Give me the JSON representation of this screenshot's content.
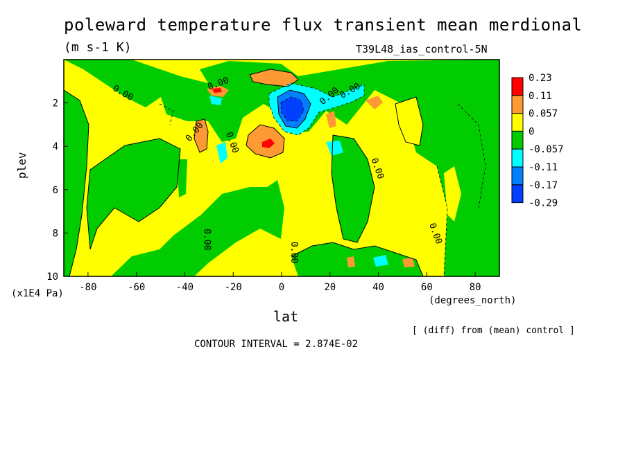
{
  "header": {
    "title": "poleward temperature flux transient mean merdional",
    "units": "(m s-1 K)",
    "experiment": "T39L48_ias_control-5N",
    "footer_diff": "[ (diff) from (mean) control ]",
    "contour_interval": "CONTOUR INTERVAL = 2.874E-02"
  },
  "chart_data": {
    "type": "heatmap",
    "title": "poleward temperature flux transient mean merdional",
    "xlabel": "lat",
    "x_units": "(degrees_north)",
    "ylabel": "plev",
    "y_units": "(x1E4 Pa)",
    "xlim": [
      -90,
      90
    ],
    "ylim": [
      0,
      10
    ],
    "y_inverted": true,
    "x_ticks": [
      -80,
      -60,
      -40,
      -20,
      0,
      20,
      40,
      60,
      80
    ],
    "y_ticks": [
      2,
      4,
      6,
      8,
      10
    ],
    "colorbar": {
      "levels": [
        "0.23",
        "0.11",
        "0.057",
        "0",
        "-0.057",
        "-0.11",
        "-0.17",
        "-0.29"
      ],
      "colors": [
        "#ff0000",
        "#ff9933",
        "#ffff00",
        "#00cc00",
        "#00ffff",
        "#0080ff",
        "#0040ff"
      ]
    },
    "contour_labels": [
      "0.00",
      "0.00",
      "0.00",
      "0.00",
      "0.00",
      "0.00",
      "0.00",
      "0.00",
      "0.00",
      "0.00"
    ],
    "regions": [
      {
        "class": "positive",
        "color": "#ffff00",
        "lat": [
          -90,
          90
        ],
        "plev": [
          0,
          10
        ]
      },
      {
        "class": "negative",
        "color": "#00cc00",
        "lat": [
          -90,
          -72
        ],
        "plev": [
          1.8,
          10
        ]
      },
      {
        "class": "negative",
        "color": "#00cc00",
        "lat": [
          -35,
          10
        ],
        "plev": [
          2.0,
          4.5
        ]
      },
      {
        "class": "negative",
        "color": "#00cc00",
        "lat": [
          28,
          90
        ],
        "plev": [
          0,
          10
        ]
      },
      {
        "class": "strong-negative",
        "color": "#0040ff",
        "lat": [
          -2,
          10
        ],
        "plev": [
          1.5,
          3.0
        ],
        "value": -0.29
      },
      {
        "class": "strong-positive",
        "color": "#ff0000",
        "lat": [
          -7,
          -4
        ],
        "plev": [
          3.7,
          4.1
        ],
        "value": 0.23
      }
    ]
  }
}
